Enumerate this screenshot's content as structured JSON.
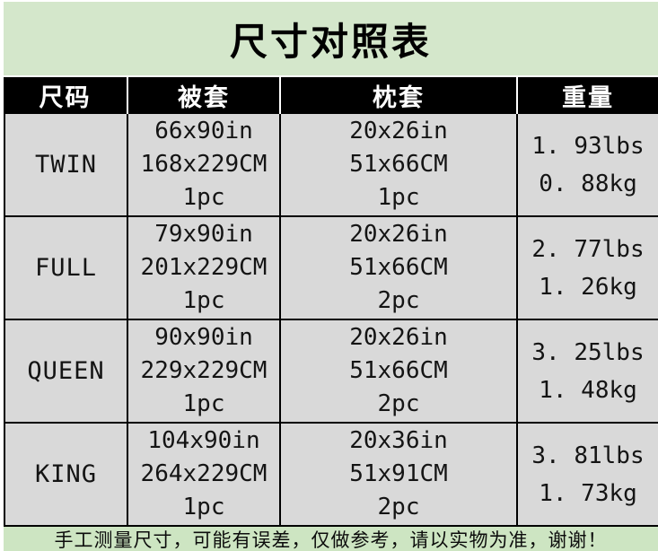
{
  "chart_data": {
    "type": "table",
    "title": "尺寸对照表",
    "columns": [
      "尺码",
      "被套",
      "枕套",
      "重量"
    ],
    "rows": [
      {
        "size": "TWIN",
        "duvet": [
          "66x90in",
          "168x229CM",
          "1pc"
        ],
        "pillow": [
          "20x26in",
          "51x66CM",
          "1pc"
        ],
        "weight": [
          "1. 93lbs",
          "0. 88kg"
        ]
      },
      {
        "size": "FULL",
        "duvet": [
          "79x90in",
          "201x229CM",
          "1pc"
        ],
        "pillow": [
          "20x26in",
          "51x66CM",
          "2pc"
        ],
        "weight": [
          "2. 77lbs",
          "1. 26kg"
        ]
      },
      {
        "size": "QUEEN",
        "duvet": [
          "90x90in",
          "229x229CM",
          "1pc"
        ],
        "pillow": [
          "20x26in",
          "51x66CM",
          "2pc"
        ],
        "weight": [
          "3. 25lbs",
          "1. 48kg"
        ]
      },
      {
        "size": "KING",
        "duvet": [
          "104x90in",
          "264x229CM",
          "1pc"
        ],
        "pillow": [
          "20x36in",
          "51x91CM",
          "2pc"
        ],
        "weight": [
          "3. 81lbs",
          "1. 73kg"
        ]
      }
    ],
    "footnote": "手工测量尺寸，可能有误差，仅做参考，请以实物为准，谢谢！"
  },
  "colors": {
    "title_bg": "#d4e7cb",
    "footer_bg": "#cde5c2",
    "row_bg": "#d9d9d9",
    "header_bg": "#000000",
    "header_text": "#ffffff",
    "border": "#000000"
  }
}
